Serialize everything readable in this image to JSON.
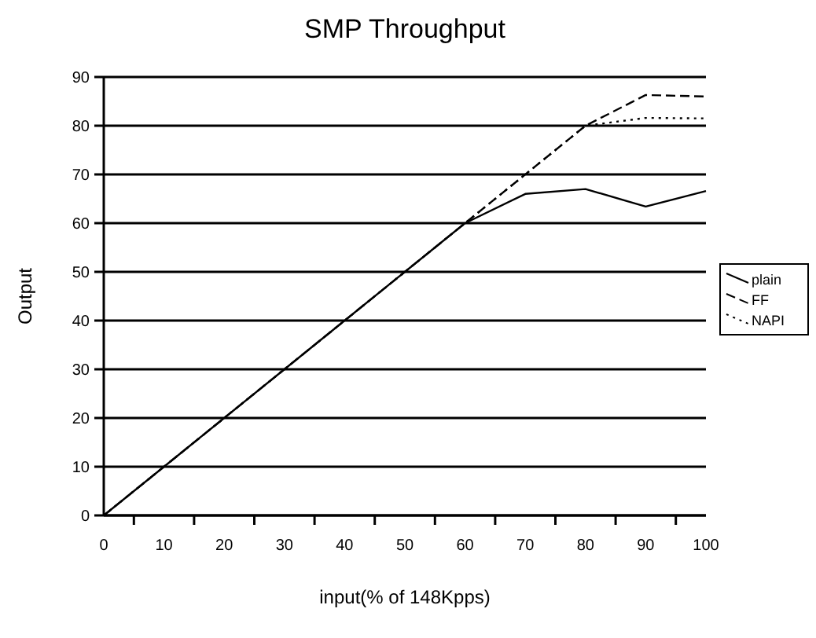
{
  "chart_data": {
    "type": "line",
    "title": "SMP Throughput",
    "xlabel": "input(% of 148Kpps)",
    "ylabel": "Output",
    "x": [
      0,
      10,
      20,
      30,
      40,
      50,
      60,
      70,
      80,
      90,
      100
    ],
    "xlim": [
      0,
      100
    ],
    "xticks": [
      0,
      {
        "value": 5,
        "label": null
      },
      10,
      {
        "value": 15,
        "label": null
      },
      20,
      {
        "value": 25,
        "label": null
      },
      30,
      {
        "value": 35,
        "label": null
      },
      40,
      {
        "value": 45,
        "label": null
      },
      50,
      {
        "value": 55,
        "label": null
      },
      60,
      {
        "value": 65,
        "label": null
      },
      70,
      {
        "value": 75,
        "label": null
      },
      80,
      {
        "value": 85,
        "label": null
      },
      90,
      {
        "value": 95,
        "label": null
      },
      100
    ],
    "ylim": [
      0,
      90
    ],
    "yticks": [
      0,
      10,
      20,
      30,
      40,
      50,
      60,
      70,
      80,
      90
    ],
    "grid": "y",
    "legend": "right",
    "series": [
      {
        "name": "plain",
        "color": "#000000",
        "line_style": "solid",
        "values": [
          0,
          10,
          20,
          30,
          40,
          50,
          60,
          66,
          67,
          63.4,
          66.6
        ]
      },
      {
        "name": "FF",
        "color": "#000000",
        "line_style": "dashed",
        "values": [
          0,
          10,
          20,
          30,
          40,
          50,
          60,
          70,
          80,
          86.3,
          86
        ]
      },
      {
        "name": "NAPI",
        "color": "#000000",
        "line_style": "dotted",
        "values": [
          0,
          10,
          20,
          30,
          40,
          50,
          60,
          70,
          80,
          81.6,
          81.5
        ]
      }
    ]
  }
}
